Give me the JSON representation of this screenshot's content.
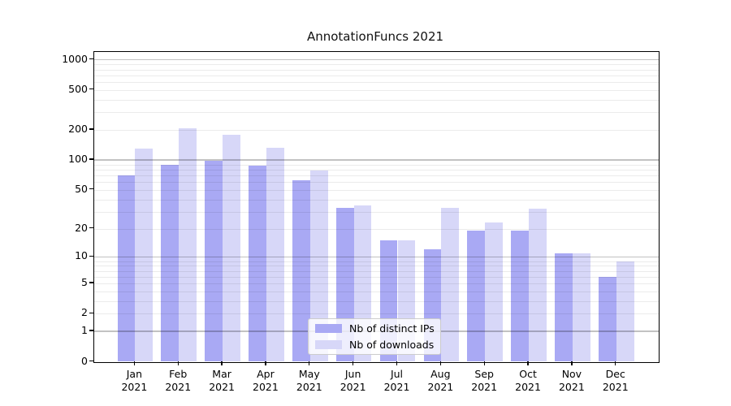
{
  "title": "AnnotationFuncs 2021",
  "legend": {
    "items": [
      {
        "label": "Nb of distinct IPs",
        "color": "#a9a9f4"
      },
      {
        "label": "Nb of downloads",
        "color": "#d7d7f8"
      }
    ]
  },
  "y_axis": {
    "tick_labels": [
      "0",
      "1",
      "2",
      "5",
      "10",
      "20",
      "50",
      "100",
      "200",
      "500",
      "1000"
    ]
  },
  "x_axis": {
    "months": [
      "Jan",
      "Feb",
      "Mar",
      "Apr",
      "May",
      "Jun",
      "Jul",
      "Aug",
      "Sep",
      "Oct",
      "Nov",
      "Dec"
    ],
    "year": "2021"
  },
  "chart_data": {
    "type": "bar",
    "title": "AnnotationFuncs 2021",
    "categories": [
      "Jan 2021",
      "Feb 2021",
      "Mar 2021",
      "Apr 2021",
      "May 2021",
      "Jun 2021",
      "Jul 2021",
      "Aug 2021",
      "Sep 2021",
      "Oct 2021",
      "Nov 2021",
      "Dec 2021"
    ],
    "series": [
      {
        "name": "Nb of distinct IPs",
        "color": "#a9a9f4",
        "values": [
          70,
          90,
          98,
          88,
          63,
          33,
          15,
          12,
          19,
          19,
          11,
          6
        ]
      },
      {
        "name": "Nb of downloads",
        "color": "#d7d7f8",
        "values": [
          129,
          209,
          179,
          132,
          78,
          35,
          15,
          33,
          23,
          32,
          11,
          9
        ]
      }
    ],
    "xlabel": "",
    "ylabel": "",
    "yscale": "log10(1+y) symlog-like, 0 at baseline",
    "yticks": [
      0,
      1,
      2,
      5,
      10,
      20,
      50,
      100,
      200,
      500,
      1000
    ],
    "ylim": [
      0,
      1050
    ],
    "grid": "horizontal major at 1,10,100,1000; faint minors at 2-9 of each decade; drawn over bars",
    "legend_position": "inside lower-center",
    "bar_layout": "paired bars touching, gap between month groups"
  }
}
